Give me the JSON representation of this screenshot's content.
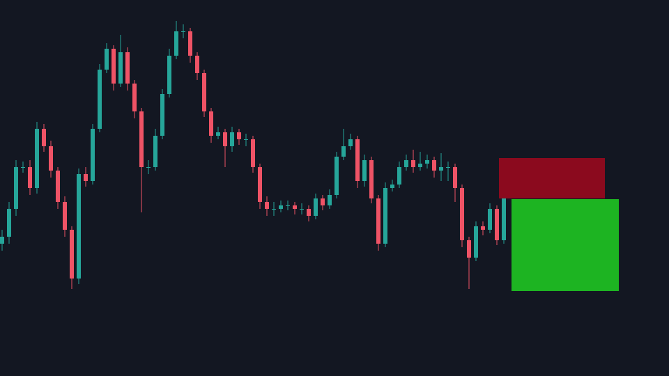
{
  "chart_data": {
    "type": "candlestick",
    "up_color": "#26a69a",
    "down_color": "#ef5366",
    "background": "#131722",
    "ylim": [
      0,
      540
    ],
    "open": [
      190,
      200,
      240,
      300,
      300,
      270,
      355,
      330,
      295,
      250,
      210,
      140,
      290,
      280,
      355,
      440,
      470,
      420,
      465,
      420,
      380,
      300,
      300,
      345,
      405,
      460,
      495,
      495,
      460,
      435,
      380,
      345,
      350,
      330,
      350,
      340,
      340,
      300,
      250,
      240,
      240,
      245,
      245,
      240,
      240,
      230,
      255,
      245,
      260,
      315,
      330,
      340,
      280,
      310,
      255,
      190,
      270,
      275,
      300,
      310,
      300,
      305,
      310,
      295,
      300,
      300,
      270,
      195,
      170,
      215,
      210,
      240,
      195
    ],
    "high": [
      210,
      250,
      310,
      308,
      310,
      365,
      362,
      338,
      300,
      258,
      215,
      298,
      300,
      362,
      448,
      478,
      475,
      490,
      472,
      425,
      385,
      310,
      355,
      412,
      470,
      510,
      505,
      500,
      465,
      440,
      385,
      358,
      355,
      358,
      355,
      348,
      345,
      305,
      258,
      250,
      252,
      252,
      250,
      248,
      245,
      262,
      260,
      268,
      322,
      355,
      348,
      345,
      318,
      315,
      260,
      278,
      282,
      308,
      318,
      325,
      322,
      318,
      315,
      320,
      308,
      305,
      275,
      200,
      222,
      222,
      248,
      245,
      295
    ],
    "low": [
      180,
      190,
      230,
      292,
      260,
      262,
      322,
      285,
      240,
      200,
      125,
      132,
      272,
      275,
      350,
      435,
      410,
      415,
      410,
      370,
      235,
      290,
      295,
      340,
      400,
      455,
      485,
      450,
      425,
      372,
      335,
      340,
      300,
      322,
      332,
      330,
      292,
      240,
      230,
      230,
      235,
      238,
      232,
      232,
      222,
      225,
      238,
      240,
      255,
      310,
      325,
      270,
      272,
      248,
      180,
      185,
      265,
      270,
      295,
      292,
      295,
      298,
      285,
      280,
      280,
      250,
      185,
      125,
      165,
      202,
      205,
      188,
      190
    ],
    "close": [
      200,
      240,
      300,
      300,
      270,
      355,
      330,
      295,
      250,
      210,
      140,
      290,
      280,
      355,
      440,
      470,
      420,
      465,
      420,
      380,
      300,
      300,
      345,
      405,
      460,
      495,
      495,
      460,
      435,
      380,
      345,
      350,
      330,
      350,
      340,
      340,
      300,
      250,
      240,
      240,
      245,
      245,
      240,
      240,
      230,
      255,
      245,
      260,
      315,
      330,
      340,
      280,
      310,
      255,
      190,
      270,
      275,
      300,
      310,
      300,
      305,
      310,
      295,
      300,
      300,
      270,
      195,
      170,
      215,
      210,
      240,
      195,
      270
    ],
    "boxes": [
      {
        "color": "#8b0a1e",
        "values": [
          255,
          313
        ]
      },
      {
        "color": "#1db422",
        "values": [
          122,
          254
        ]
      }
    ]
  }
}
